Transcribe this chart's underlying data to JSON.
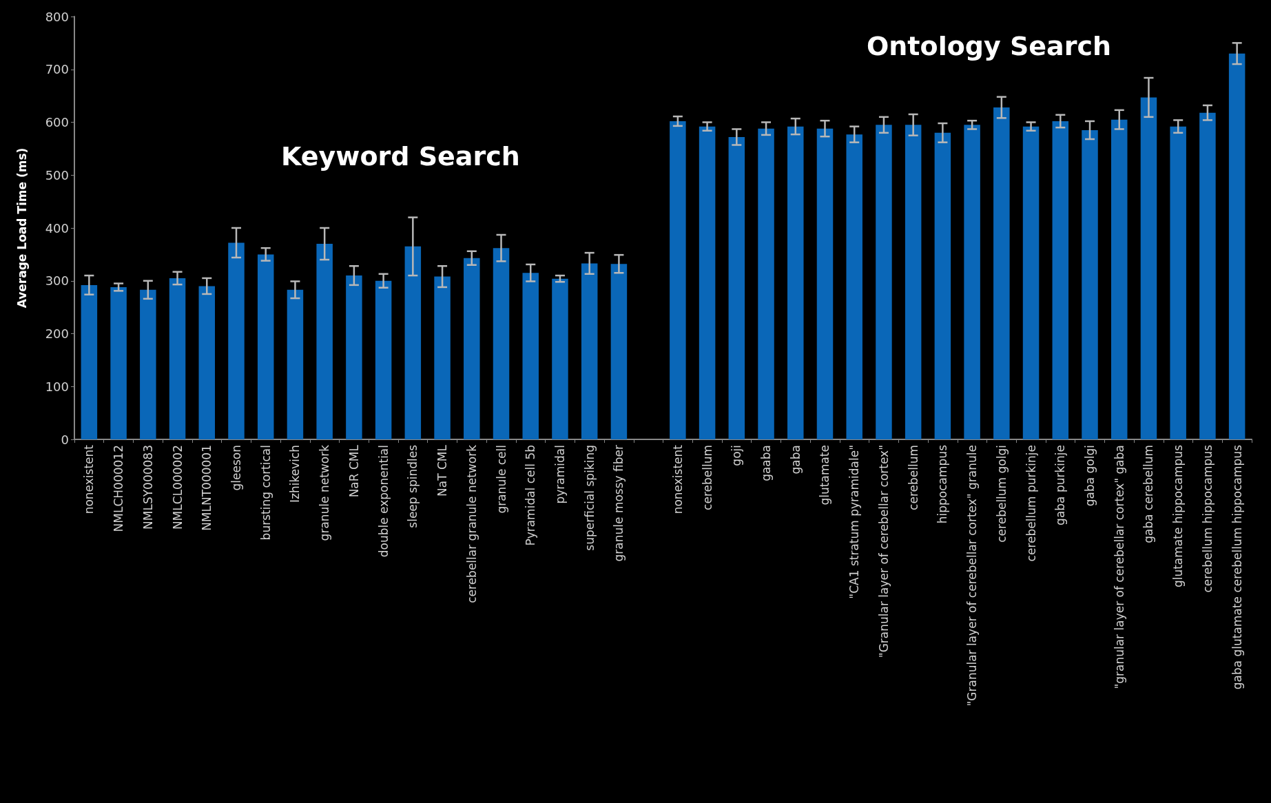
{
  "chart_data": {
    "type": "bar",
    "ylabel": "Average Load Time (ms)",
    "annotations": [
      "Keyword Search",
      "Ontology Search"
    ],
    "categories": [
      "nonexistent",
      "NMLCH000012",
      "NMLSY000083",
      "NMLCL000002",
      "NMLNT000001",
      "gleeson",
      "bursting cortical",
      "Izhikevich",
      "granule network",
      "NaR CML",
      "double exponential",
      "sleep spindles",
      "NaT CML",
      "cerebellar granule network",
      "granule cell",
      "Pyramidal cell 5b",
      "pyramidal",
      "superficial spiking",
      "granule mossy fiber",
      null,
      "nonexistent",
      "cerebellum",
      "goji",
      "gaaba",
      "gaba",
      "glutamate",
      "\"CA1 stratum pyramidale\"",
      "\"Granular layer of cerebellar cortex\"",
      "cerebellum",
      "hippocampus",
      "\"Granular layer of cerebellar cortex\" granule",
      "cerebellum golgi",
      "cerebellum purkinje",
      "gaba purkinje",
      "gaba golgi",
      "\"granular layer of cerebellar cortex\" gaba",
      "gaba cerebellum",
      "glutamate hippocampus",
      "cerebellum hippocampus",
      "gaba glutamate cerebellum hippocampus"
    ],
    "values": [
      292,
      288,
      283,
      305,
      290,
      372,
      350,
      283,
      370,
      310,
      300,
      365,
      308,
      343,
      362,
      315,
      304,
      333,
      332,
      null,
      602,
      592,
      572,
      588,
      592,
      588,
      577,
      595,
      595,
      580,
      595,
      628,
      592,
      602,
      585,
      605,
      647,
      592,
      618,
      730
    ],
    "errors": [
      18,
      7,
      17,
      12,
      15,
      28,
      12,
      16,
      30,
      18,
      13,
      55,
      20,
      13,
      25,
      16,
      6,
      20,
      17,
      null,
      9,
      8,
      15,
      12,
      15,
      15,
      15,
      15,
      20,
      18,
      8,
      20,
      8,
      12,
      17,
      18,
      37,
      12,
      14,
      20
    ],
    "color": "#0a67b8",
    "ylim": [
      0,
      800
    ],
    "yticks": [
      0,
      100,
      200,
      300,
      400,
      500,
      600,
      700,
      800
    ],
    "grid": false
  }
}
